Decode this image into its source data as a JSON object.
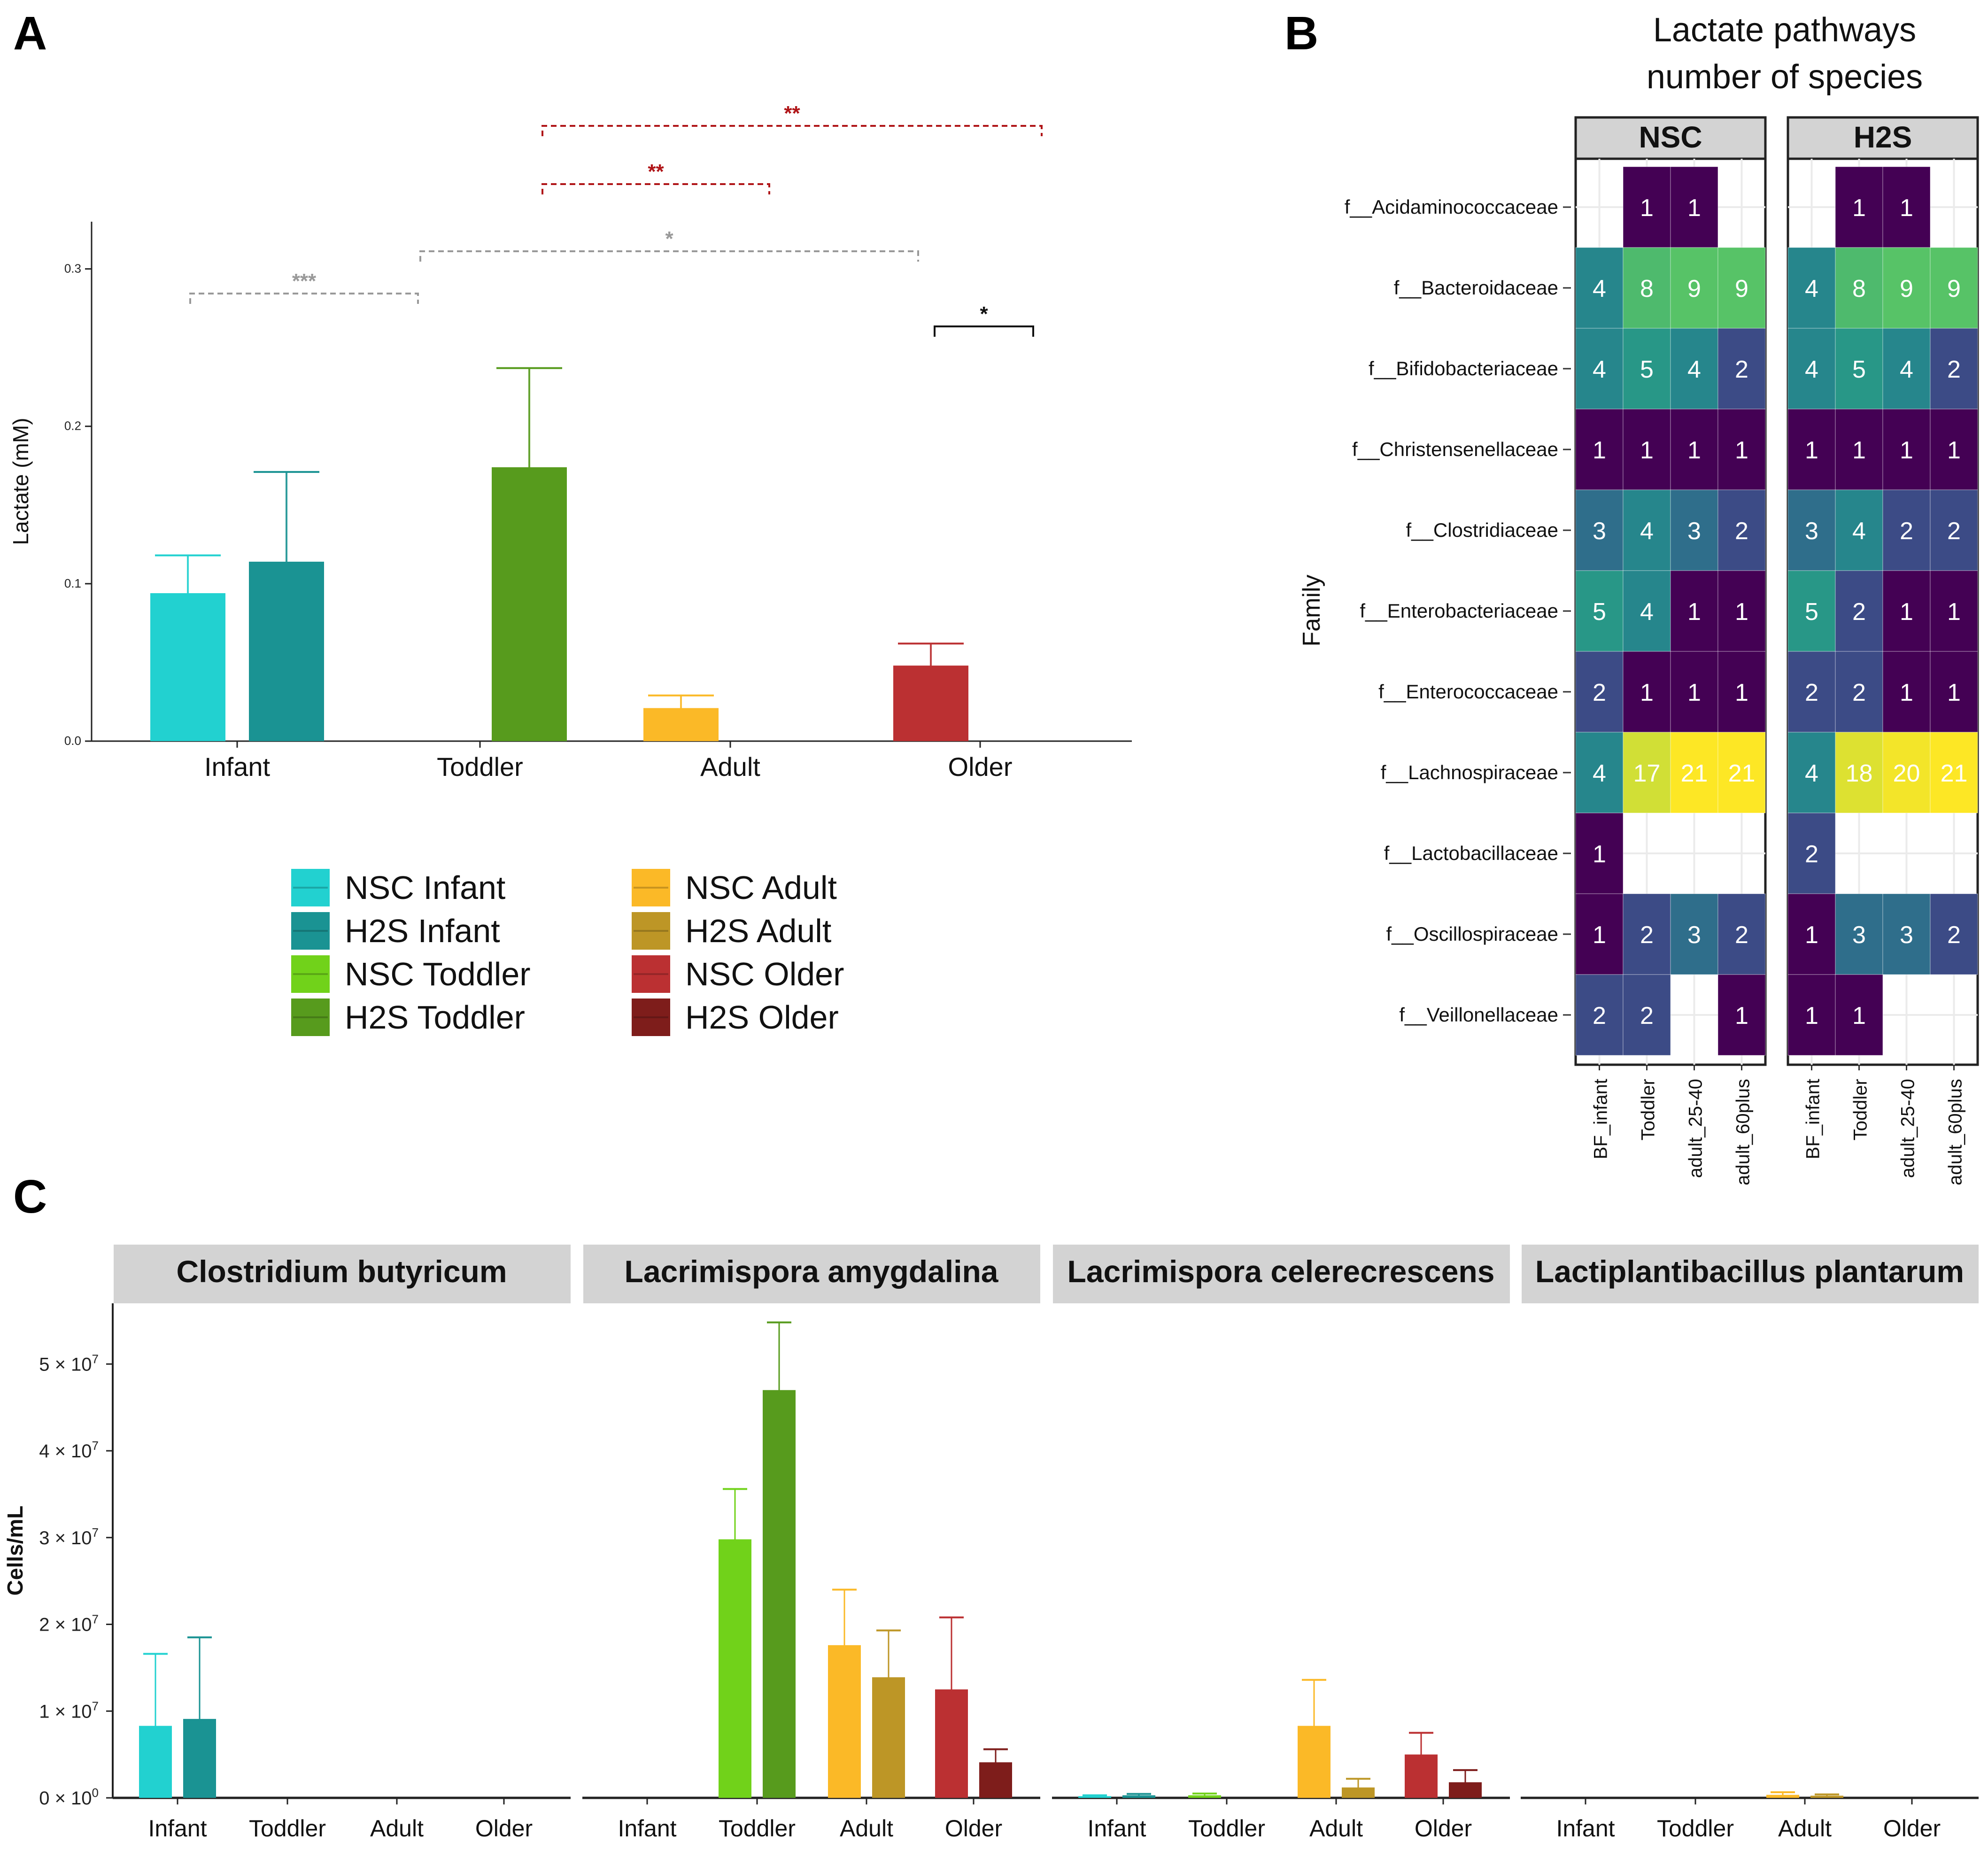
{
  "panels": {
    "a": "A",
    "b": "B",
    "c": "C"
  },
  "chart_data": [
    {
      "id": "A",
      "type": "bar",
      "ylabel": "Lactate (mM)",
      "ylim": [
        0,
        0.33
      ],
      "yticks": [
        "0.0",
        "0.1",
        "0.2",
        "0.3"
      ],
      "ytick_values": [
        0,
        0.1,
        0.2,
        0.3
      ],
      "categories": [
        "Infant",
        "Toddler",
        "Adult",
        "Older"
      ],
      "bars": [
        {
          "group": "Infant",
          "series": "NSC Infant",
          "value": 0.094,
          "err": 0.024,
          "color": "#22d1d0"
        },
        {
          "group": "Infant",
          "series": "H2S Infant",
          "value": 0.114,
          "err": 0.057,
          "color": "#1a9393"
        },
        {
          "group": "Toddler",
          "series": "H2S Toddler",
          "value": 0.174,
          "err": 0.063,
          "color": "#579b1d"
        },
        {
          "group": "Adult",
          "series": "NSC Adult",
          "value": 0.021,
          "err": 0.008,
          "color": "#fbb927"
        },
        {
          "group": "Older",
          "series": "NSC Older",
          "value": 0.048,
          "err": 0.014,
          "color": "#bb3032"
        }
      ],
      "significance": [
        {
          "label": "***",
          "color": "#999999"
        },
        {
          "label": "*",
          "color": "#999999"
        },
        {
          "label": "**",
          "color": "#b01518"
        },
        {
          "label": "**",
          "color": "#b01518"
        },
        {
          "label": "*",
          "color": "#111111"
        }
      ],
      "legend": [
        {
          "label": "NSC Infant",
          "color": "#22d1d0"
        },
        {
          "label": "H2S Infant",
          "color": "#1a9393"
        },
        {
          "label": "NSC Toddler",
          "color": "#71d21a"
        },
        {
          "label": "H2S Toddler",
          "color": "#579b1d"
        },
        {
          "label": "NSC Adult",
          "color": "#fbb927"
        },
        {
          "label": "H2S Adult",
          "color": "#bd9626"
        },
        {
          "label": "NSC Older",
          "color": "#bb3032"
        },
        {
          "label": "H2S Older",
          "color": "#7e1d1b"
        }
      ]
    },
    {
      "id": "B",
      "type": "heatmap",
      "title": "Lactate pathways number of species",
      "title_lines": [
        "Lactate pathways",
        "number of species"
      ],
      "ylabel": "Family",
      "facets": [
        "NSC",
        "H2S"
      ],
      "columns": [
        "BF_infant",
        "Toddler",
        "adult_25-40",
        "adult_60plus"
      ],
      "rows": [
        "f__Acidaminococcaceae",
        "f__Bacteroidaceae",
        "f__Bifidobacteriaceae",
        "f__Christensenellaceae",
        "f__Clostridiaceae",
        "f__Enterobacteriaceae",
        "f__Enterococcaceae",
        "f__Lachnospiraceae",
        "f__Lactobacillaceae",
        "f__Oscillospiraceae",
        "f__Veillonellaceae"
      ],
      "values": {
        "NSC": [
          [
            null,
            1,
            1,
            null
          ],
          [
            4,
            8,
            9,
            9
          ],
          [
            4,
            5,
            4,
            2
          ],
          [
            1,
            1,
            1,
            1
          ],
          [
            3,
            4,
            3,
            2
          ],
          [
            5,
            4,
            1,
            1
          ],
          [
            2,
            1,
            1,
            1
          ],
          [
            4,
            17,
            21,
            21
          ],
          [
            1,
            null,
            null,
            null
          ],
          [
            1,
            2,
            3,
            2
          ],
          [
            2,
            2,
            null,
            1
          ]
        ],
        "H2S": [
          [
            null,
            1,
            1,
            null
          ],
          [
            4,
            8,
            9,
            9
          ],
          [
            4,
            5,
            4,
            2
          ],
          [
            1,
            1,
            1,
            1
          ],
          [
            3,
            4,
            2,
            2
          ],
          [
            5,
            2,
            1,
            1
          ],
          [
            2,
            2,
            1,
            1
          ],
          [
            4,
            18,
            20,
            21
          ],
          [
            2,
            null,
            null,
            null
          ],
          [
            1,
            3,
            3,
            2
          ],
          [
            1,
            1,
            null,
            null
          ]
        ]
      }
    },
    {
      "id": "C",
      "type": "bar",
      "ylabel": "Cells/mL",
      "ylim": [
        0,
        57000000
      ],
      "ytick_values": [
        0,
        10000000,
        20000000,
        30000000,
        40000000,
        50000000
      ],
      "ytick_mantissa": [
        "0",
        "1",
        "2",
        "3",
        "4",
        "5"
      ],
      "ytick_times": "× 10",
      "ytick_exponent": [
        "0",
        "7",
        "7",
        "7",
        "7",
        "7"
      ],
      "categories": [
        "Infant",
        "Toddler",
        "Adult",
        "Older"
      ],
      "facets": [
        {
          "title": "Clostridium butyricum",
          "bars": [
            {
              "group": 0,
              "pos": 0,
              "value": 8300000,
              "err": 8300000,
              "color": "#22d1d0"
            },
            {
              "group": 0,
              "pos": 1,
              "value": 9100000,
              "err": 9400000,
              "color": "#1a9393"
            }
          ]
        },
        {
          "title": "Lacrimispora amygdalina",
          "bars": [
            {
              "group": 1,
              "pos": 0,
              "value": 29800000,
              "err": 5800000,
              "color": "#71d21a"
            },
            {
              "group": 1,
              "pos": 1,
              "value": 47000000,
              "err": 7800000,
              "color": "#579b1d"
            },
            {
              "group": 2,
              "pos": 0,
              "value": 17600000,
              "err": 6400000,
              "color": "#fbb927"
            },
            {
              "group": 2,
              "pos": 1,
              "value": 13900000,
              "err": 5400000,
              "color": "#bd9626"
            },
            {
              "group": 3,
              "pos": 0,
              "value": 12500000,
              "err": 8300000,
              "color": "#bb3032"
            },
            {
              "group": 3,
              "pos": 1,
              "value": 4100000,
              "err": 1500000,
              "color": "#7e1d1b"
            }
          ]
        },
        {
          "title": "Lacrimispora celerecrescens",
          "bars": [
            {
              "group": 0,
              "pos": 0,
              "value": 200000,
              "err": 100000,
              "color": "#22d1d0"
            },
            {
              "group": 0,
              "pos": 1,
              "value": 300000,
              "err": 150000,
              "color": "#1a9393"
            },
            {
              "group": 1,
              "pos": 0,
              "value": 300000,
              "err": 200000,
              "color": "#71d21a"
            },
            {
              "group": 2,
              "pos": 0,
              "value": 8300000,
              "err": 5300000,
              "color": "#fbb927"
            },
            {
              "group": 2,
              "pos": 1,
              "value": 1200000,
              "err": 1000000,
              "color": "#bd9626"
            },
            {
              "group": 3,
              "pos": 0,
              "value": 5000000,
              "err": 2500000,
              "color": "#bb3032"
            },
            {
              "group": 3,
              "pos": 1,
              "value": 1800000,
              "err": 1400000,
              "color": "#7e1d1b"
            }
          ]
        },
        {
          "title": "Lactiplantibacillus plantarum",
          "bars": [
            {
              "group": 2,
              "pos": 0,
              "value": 350000,
              "err": 300000,
              "color": "#fbb927"
            },
            {
              "group": 2,
              "pos": 1,
              "value": 250000,
              "err": 150000,
              "color": "#bd9626"
            }
          ]
        }
      ]
    }
  ]
}
